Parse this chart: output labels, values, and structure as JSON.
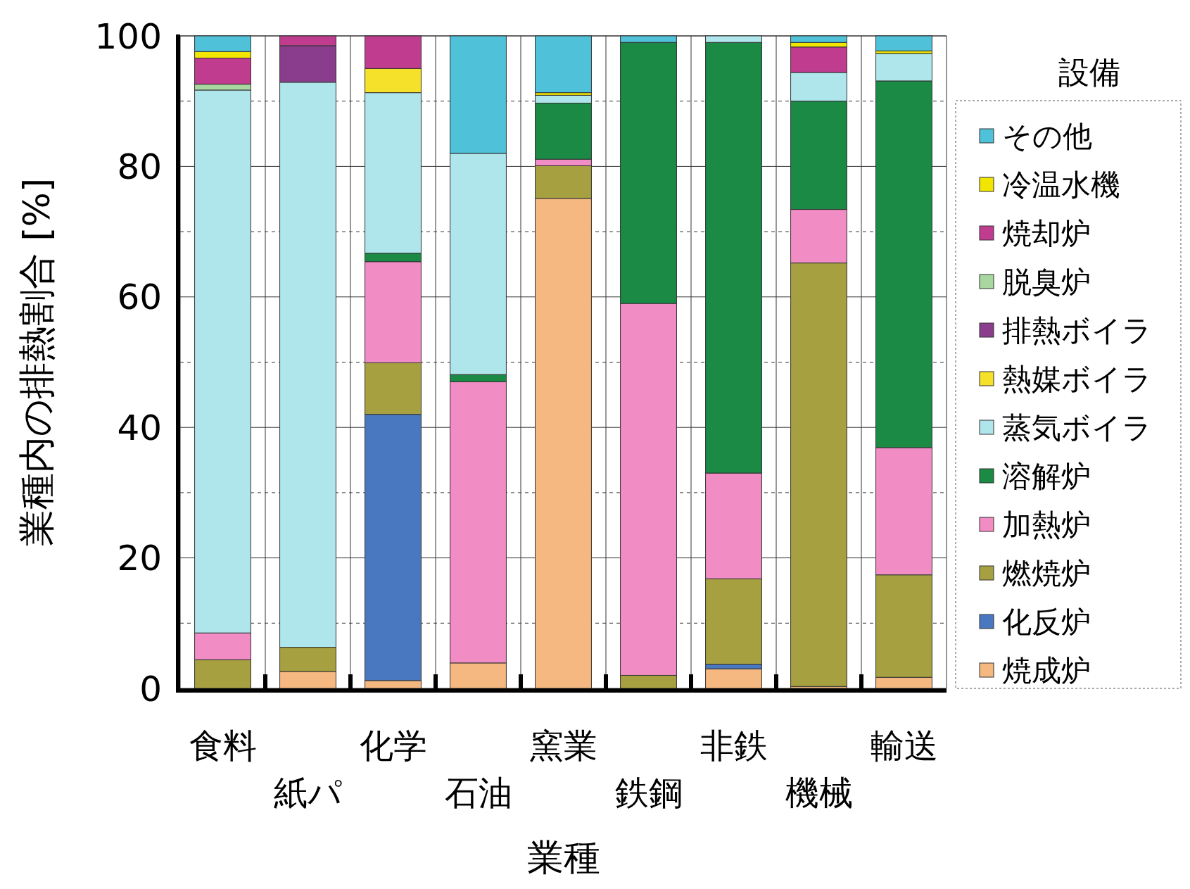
{
  "chart_data": {
    "type": "bar",
    "stacked": true,
    "xlabel": "業種",
    "ylabel": "業種内の排熱割合 [%]",
    "legend_title": "設備",
    "legend": "right",
    "grid": "y",
    "categories": [
      "食料",
      "紙パ",
      "化学",
      "石油",
      "窯業",
      "鉄鋼",
      "非鉄",
      "機械",
      "輸送"
    ],
    "ylim": [
      0,
      100
    ],
    "yticks": [
      0,
      {
        "value": 10,
        "label": null
      },
      20,
      {
        "value": 30,
        "label": null
      },
      40,
      {
        "value": 50,
        "label": null
      },
      60,
      {
        "value": 70,
        "label": null
      },
      80,
      {
        "value": 90,
        "label": null
      },
      100
    ],
    "series": [
      {
        "name": "焼成炉",
        "color": "#f5b880",
        "values": [
          0,
          2.6,
          1.2,
          3.9,
          75.1,
          0,
          3.0,
          0.3,
          1.7
        ]
      },
      {
        "name": "化反炉",
        "color": "#4a78c0",
        "values": [
          0,
          0,
          40.8,
          0,
          0,
          0,
          0.7,
          0,
          0
        ]
      },
      {
        "name": "燃焼炉",
        "color": "#a6a040",
        "values": [
          4.4,
          3.7,
          7.9,
          0,
          5.0,
          2.0,
          13.1,
          64.9,
          15.7
        ]
      },
      {
        "name": "加熱炉",
        "color": "#f28cc4",
        "values": [
          4.1,
          0,
          15.5,
          43.1,
          1.0,
          57.0,
          16.2,
          8.2,
          19.5
        ]
      },
      {
        "name": "溶解炉",
        "color": "#1a8a45",
        "values": [
          0,
          0,
          1.3,
          1.1,
          8.6,
          40.0,
          66.0,
          16.6,
          56.2
        ]
      },
      {
        "name": "蒸気ボイラ",
        "color": "#aee6ec",
        "values": [
          83.2,
          86.6,
          24.6,
          33.9,
          1.2,
          0,
          1.0,
          4.4,
          4.2
        ]
      },
      {
        "name": "熱媒ボイラ",
        "color": "#f5e02a",
        "values": [
          0,
          0,
          3.7,
          0,
          0,
          0,
          0,
          0,
          0
        ]
      },
      {
        "name": "排熱ボイラ",
        "color": "#8a3d8c",
        "values": [
          0,
          5.6,
          0,
          0,
          0,
          0,
          0,
          0,
          0
        ]
      },
      {
        "name": "脱臭炉",
        "color": "#a8d8a0",
        "values": [
          0.9,
          0,
          0,
          0,
          0,
          0,
          0,
          0,
          0
        ]
      },
      {
        "name": "焼却炉",
        "color": "#c03c8e",
        "values": [
          4.0,
          1.5,
          5.0,
          0,
          0,
          0,
          0,
          3.9,
          0
        ]
      },
      {
        "name": "冷温水機",
        "color": "#f2e600",
        "values": [
          1.0,
          0,
          0,
          0,
          0.4,
          0,
          0,
          0.7,
          0.4
        ]
      },
      {
        "name": "その他",
        "color": "#4fc1d9",
        "values": [
          2.4,
          0,
          0,
          18.0,
          8.7,
          1.0,
          0,
          1.0,
          2.3
        ]
      }
    ]
  }
}
